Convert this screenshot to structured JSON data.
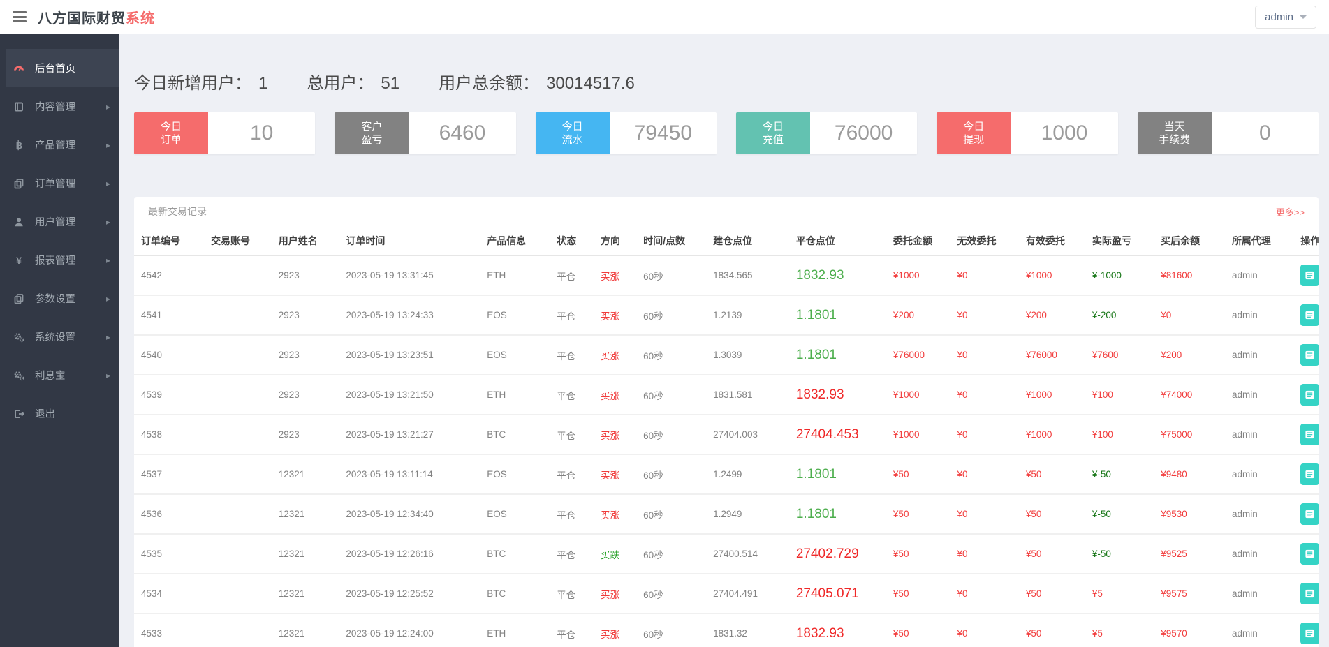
{
  "header": {
    "brand": "八方国际财贸",
    "brand_accent": "系统",
    "user_menu": "admin"
  },
  "sidebar": {
    "items": [
      {
        "label": "后台首页",
        "icon": "dashboard-icon",
        "state": "active",
        "arrow": ""
      },
      {
        "label": "内容管理",
        "icon": "book-icon",
        "state": "",
        "arrow": "▸"
      },
      {
        "label": "产品管理",
        "icon": "bitcoin-icon",
        "state": "",
        "arrow": "▸"
      },
      {
        "label": "订单管理",
        "icon": "copy-icon",
        "state": "",
        "arrow": "▸"
      },
      {
        "label": "用户管理",
        "icon": "user-icon",
        "state": "",
        "arrow": "▸"
      },
      {
        "label": "报表管理",
        "icon": "yen-icon",
        "state": "",
        "arrow": "▸"
      },
      {
        "label": "参数设置",
        "icon": "copy-icon",
        "state": "",
        "arrow": "▸"
      },
      {
        "label": "系统设置",
        "icon": "gears-icon",
        "state": "",
        "arrow": "▸"
      },
      {
        "label": "利息宝",
        "icon": "gears-icon",
        "state": "",
        "arrow": "▸"
      },
      {
        "label": "退出",
        "icon": "logout-icon",
        "state": "",
        "arrow": ""
      }
    ]
  },
  "stats": [
    {
      "label": "今日新增用户：",
      "value": "1"
    },
    {
      "label": "总用户：",
      "value": "51"
    },
    {
      "label": "用户总余额：",
      "value": "30014517.6"
    }
  ],
  "cards": [
    {
      "label": "今日\n订单",
      "value": "10",
      "color": "#f56c6c"
    },
    {
      "label": "客户\n盈亏",
      "value": "6460",
      "color": "#828282"
    },
    {
      "label": "今日\n流水",
      "value": "79450",
      "color": "#45b6f2"
    },
    {
      "label": "今日\n充值",
      "value": "76000",
      "color": "#63c2b1"
    },
    {
      "label": "今日\n提现",
      "value": "1000",
      "color": "#f56c6c"
    },
    {
      "label": "当天\n手续费",
      "value": "0",
      "color": "#828282"
    }
  ],
  "panel": {
    "title": "最新交易记录",
    "more_link": "更多>>",
    "columns": [
      "订单编号",
      "交易账号",
      "用户姓名",
      "订单时间",
      "产品信息",
      "状态",
      "方向",
      "时间/点数",
      "建仓点位",
      "平仓点位",
      "委托金额",
      "无效委托",
      "有效委托",
      "实际盈亏",
      "买后余额",
      "所属代理",
      "操作"
    ],
    "rows": [
      {
        "order_no": "4542",
        "account": "",
        "name": "2923",
        "time": "2023-05-19 13:31:45",
        "product": "ETH",
        "status": "平仓",
        "direction": "买涨",
        "direction_color": "red",
        "period": "60秒",
        "open": "1834.565",
        "close": "1832.93",
        "close_color": "green",
        "amount": "¥1000",
        "invalid": "¥0",
        "valid": "¥1000",
        "profit": "¥-1000",
        "profit_color": "green",
        "balance": "¥81600",
        "agent": "admin"
      },
      {
        "order_no": "4541",
        "account": "",
        "name": "2923",
        "time": "2023-05-19 13:24:33",
        "product": "EOS",
        "status": "平仓",
        "direction": "买涨",
        "direction_color": "red",
        "period": "60秒",
        "open": "1.2139",
        "close": "1.1801",
        "close_color": "green",
        "amount": "¥200",
        "invalid": "¥0",
        "valid": "¥200",
        "profit": "¥-200",
        "profit_color": "green",
        "balance": "¥0",
        "agent": "admin"
      },
      {
        "order_no": "4540",
        "account": "",
        "name": "2923",
        "time": "2023-05-19 13:23:51",
        "product": "EOS",
        "status": "平仓",
        "direction": "买涨",
        "direction_color": "red",
        "period": "60秒",
        "open": "1.3039",
        "close": "1.1801",
        "close_color": "green",
        "amount": "¥76000",
        "invalid": "¥0",
        "valid": "¥76000",
        "profit": "¥7600",
        "profit_color": "red",
        "balance": "¥200",
        "agent": "admin"
      },
      {
        "order_no": "4539",
        "account": "",
        "name": "2923",
        "time": "2023-05-19 13:21:50",
        "product": "ETH",
        "status": "平仓",
        "direction": "买涨",
        "direction_color": "red",
        "period": "60秒",
        "open": "1831.581",
        "close": "1832.93",
        "close_color": "red",
        "amount": "¥1000",
        "invalid": "¥0",
        "valid": "¥1000",
        "profit": "¥100",
        "profit_color": "red",
        "balance": "¥74000",
        "agent": "admin"
      },
      {
        "order_no": "4538",
        "account": "",
        "name": "2923",
        "time": "2023-05-19 13:21:27",
        "product": "BTC",
        "status": "平仓",
        "direction": "买涨",
        "direction_color": "red",
        "period": "60秒",
        "open": "27404.003",
        "close": "27404.453",
        "close_color": "red",
        "amount": "¥1000",
        "invalid": "¥0",
        "valid": "¥1000",
        "profit": "¥100",
        "profit_color": "red",
        "balance": "¥75000",
        "agent": "admin"
      },
      {
        "order_no": "4537",
        "account": "",
        "name": "12321",
        "time": "2023-05-19 13:11:14",
        "product": "EOS",
        "status": "平仓",
        "direction": "买涨",
        "direction_color": "red",
        "period": "60秒",
        "open": "1.2499",
        "close": "1.1801",
        "close_color": "green",
        "amount": "¥50",
        "invalid": "¥0",
        "valid": "¥50",
        "profit": "¥-50",
        "profit_color": "green",
        "balance": "¥9480",
        "agent": "admin"
      },
      {
        "order_no": "4536",
        "account": "",
        "name": "12321",
        "time": "2023-05-19 12:34:40",
        "product": "EOS",
        "status": "平仓",
        "direction": "买涨",
        "direction_color": "red",
        "period": "60秒",
        "open": "1.2949",
        "close": "1.1801",
        "close_color": "green",
        "amount": "¥50",
        "invalid": "¥0",
        "valid": "¥50",
        "profit": "¥-50",
        "profit_color": "green",
        "balance": "¥9530",
        "agent": "admin"
      },
      {
        "order_no": "4535",
        "account": "",
        "name": "12321",
        "time": "2023-05-19 12:26:16",
        "product": "BTC",
        "status": "平仓",
        "direction": "买跌",
        "direction_color": "green",
        "period": "60秒",
        "open": "27400.514",
        "close": "27402.729",
        "close_color": "red",
        "amount": "¥50",
        "invalid": "¥0",
        "valid": "¥50",
        "profit": "¥-50",
        "profit_color": "green",
        "balance": "¥9525",
        "agent": "admin"
      },
      {
        "order_no": "4534",
        "account": "",
        "name": "12321",
        "time": "2023-05-19 12:25:52",
        "product": "BTC",
        "status": "平仓",
        "direction": "买涨",
        "direction_color": "red",
        "period": "60秒",
        "open": "27404.491",
        "close": "27405.071",
        "close_color": "red",
        "amount": "¥50",
        "invalid": "¥0",
        "valid": "¥50",
        "profit": "¥5",
        "profit_color": "red",
        "balance": "¥9575",
        "agent": "admin"
      },
      {
        "order_no": "4533",
        "account": "",
        "name": "12321",
        "time": "2023-05-19 12:24:00",
        "product": "ETH",
        "status": "平仓",
        "direction": "买涨",
        "direction_color": "red",
        "period": "60秒",
        "open": "1831.32",
        "close": "1832.93",
        "close_color": "red",
        "amount": "¥50",
        "invalid": "¥0",
        "valid": "¥50",
        "profit": "¥5",
        "profit_color": "red",
        "balance": "¥9570",
        "agent": "admin"
      }
    ]
  },
  "colors": {
    "accent": "#f56c6c",
    "sidebar_bg": "#323845",
    "sidebar_active_bg": "#3d4452",
    "content_bg": "#eef0f5",
    "value_red": "#f23c3c",
    "value_green_dark": "#177617",
    "price_green": "#4cae4c",
    "price_red": "#ef2929",
    "direction_up_red": "#f03b3b",
    "direction_down_green": "#1f9d1f",
    "action_button_teal": "#35d3c5",
    "card_blue": "#45b6f2",
    "card_teal": "#63c2b1",
    "card_gray": "#828282"
  }
}
